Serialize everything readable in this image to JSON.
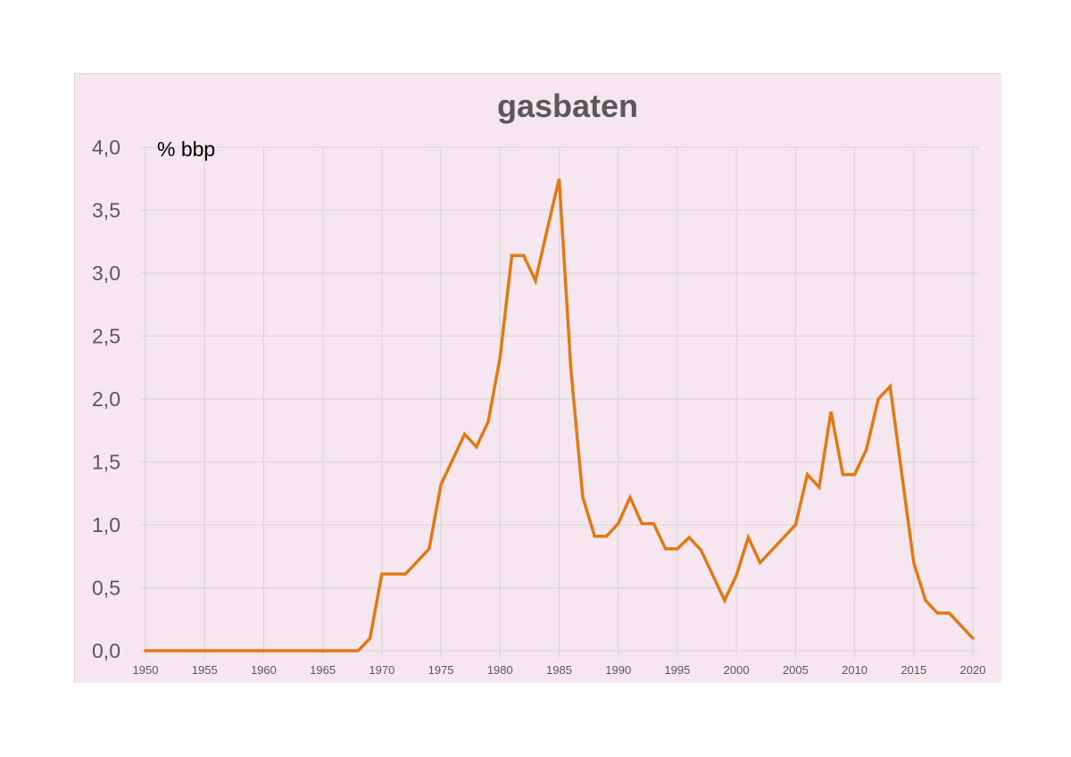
{
  "chart_data": {
    "type": "line",
    "title": "gasbaten",
    "unit_label": "% bbp",
    "xlabel": "",
    "ylabel": "",
    "xlim": [
      1950,
      2020
    ],
    "ylim": [
      0,
      4
    ],
    "x_ticks": [
      "1950",
      "1955",
      "1960",
      "1965",
      "1970",
      "1975",
      "1980",
      "1985",
      "1990",
      "1995",
      "2000",
      "2005",
      "2010",
      "2015",
      "2020"
    ],
    "y_ticks": [
      "0,0",
      "0,5",
      "1,0",
      "1,5",
      "2,0",
      "2,5",
      "3,0",
      "3,5",
      "4,0"
    ],
    "grid": true,
    "legend": "none",
    "line_color": "#e07a14",
    "background_color": "#f6e6ef",
    "series": [
      {
        "x": [
          1950,
          1951,
          1952,
          1953,
          1954,
          1955,
          1956,
          1957,
          1958,
          1959,
          1960,
          1961,
          1962,
          1963,
          1964,
          1965,
          1966,
          1967,
          1968,
          1969,
          1970,
          1971,
          1972,
          1973,
          1974,
          1975,
          1976,
          1977,
          1978,
          1979,
          1980,
          1981,
          1982,
          1983,
          1984,
          1985,
          1986,
          1987,
          1988,
          1989,
          1990,
          1991,
          1992,
          1993,
          1994,
          1995,
          1996,
          1997,
          1998,
          1999,
          2000,
          2001,
          2002,
          2003,
          2004,
          2005,
          2006,
          2007,
          2008,
          2009,
          2010,
          2011,
          2012,
          2013,
          2014,
          2015,
          2016,
          2017,
          2018,
          2019,
          2020
        ],
        "values": [
          0,
          0,
          0,
          0,
          0,
          0,
          0,
          0,
          0,
          0,
          0,
          0,
          0,
          0,
          0,
          0,
          0,
          0,
          0,
          0.1,
          0.61,
          0.61,
          0.61,
          0.71,
          0.81,
          1.32,
          1.52,
          1.72,
          1.62,
          1.82,
          2.33,
          3.14,
          3.14,
          2.94,
          3.35,
          3.75,
          2.23,
          1.22,
          0.91,
          0.91,
          1.01,
          1.22,
          1.01,
          1.01,
          0.81,
          0.81,
          0.9,
          0.8,
          0.6,
          0.4,
          0.6,
          0.9,
          0.7,
          0.8,
          0.9,
          1.0,
          1.4,
          1.3,
          1.9,
          1.4,
          1.4,
          1.6,
          2.0,
          2.1,
          1.4,
          0.7,
          0.4,
          0.3,
          0.3,
          0.2,
          0.1
        ]
      }
    ]
  }
}
